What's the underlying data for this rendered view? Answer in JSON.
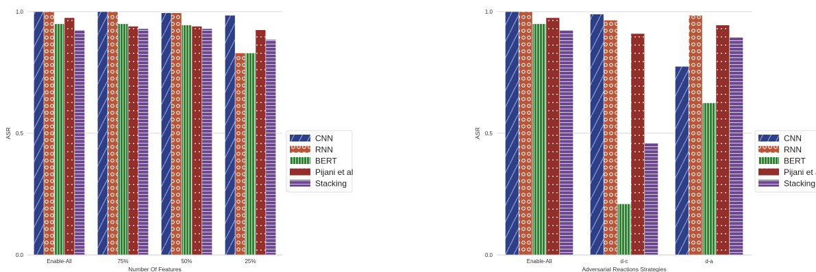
{
  "colors": {
    "CNN": "#2f3f86",
    "RNN": "#b6573b",
    "BERT": "#3a7a3c",
    "Pijani et al": "#922f2b",
    "Stacking": "#6d4a8d"
  },
  "chart_data": [
    {
      "type": "bar",
      "xlabel": "Number Of Features",
      "ylabel": "ASR",
      "ylim": [
        0,
        1.0
      ],
      "yticks": [
        "0.0",
        "0.5",
        "1.0"
      ],
      "grid": true,
      "legend_position": "right",
      "categories": [
        "Enable-All",
        "75%",
        "50%",
        "25%"
      ],
      "series": [
        {
          "name": "CNN",
          "values": [
            1.0,
            1.0,
            0.995,
            0.985
          ]
        },
        {
          "name": "RNN",
          "values": [
            1.0,
            1.0,
            0.995,
            0.83
          ]
        },
        {
          "name": "BERT",
          "values": [
            0.95,
            0.95,
            0.945,
            0.83
          ]
        },
        {
          "name": "Pijani et al",
          "values": [
            0.975,
            0.94,
            0.94,
            0.925
          ]
        },
        {
          "name": "Stacking",
          "values": [
            0.925,
            0.93,
            0.93,
            0.885
          ]
        }
      ]
    },
    {
      "type": "bar",
      "xlabel": "Adversarial Reactions Strategies",
      "ylabel": "ASR",
      "ylim": [
        0,
        1.0
      ],
      "yticks": [
        "0.0",
        "0.5",
        "1.0"
      ],
      "grid": true,
      "legend_position": "right",
      "categories": [
        "Enable-All",
        "d-c",
        "d-a"
      ],
      "series": [
        {
          "name": "CNN",
          "values": [
            1.0,
            0.99,
            0.775
          ]
        },
        {
          "name": "RNN",
          "values": [
            1.0,
            0.965,
            0.985
          ]
        },
        {
          "name": "BERT",
          "values": [
            0.95,
            0.21,
            0.625
          ]
        },
        {
          "name": "Pijani et al",
          "values": [
            0.975,
            0.91,
            0.945
          ]
        },
        {
          "name": "Stacking",
          "values": [
            0.925,
            0.46,
            0.895
          ]
        }
      ]
    }
  ]
}
